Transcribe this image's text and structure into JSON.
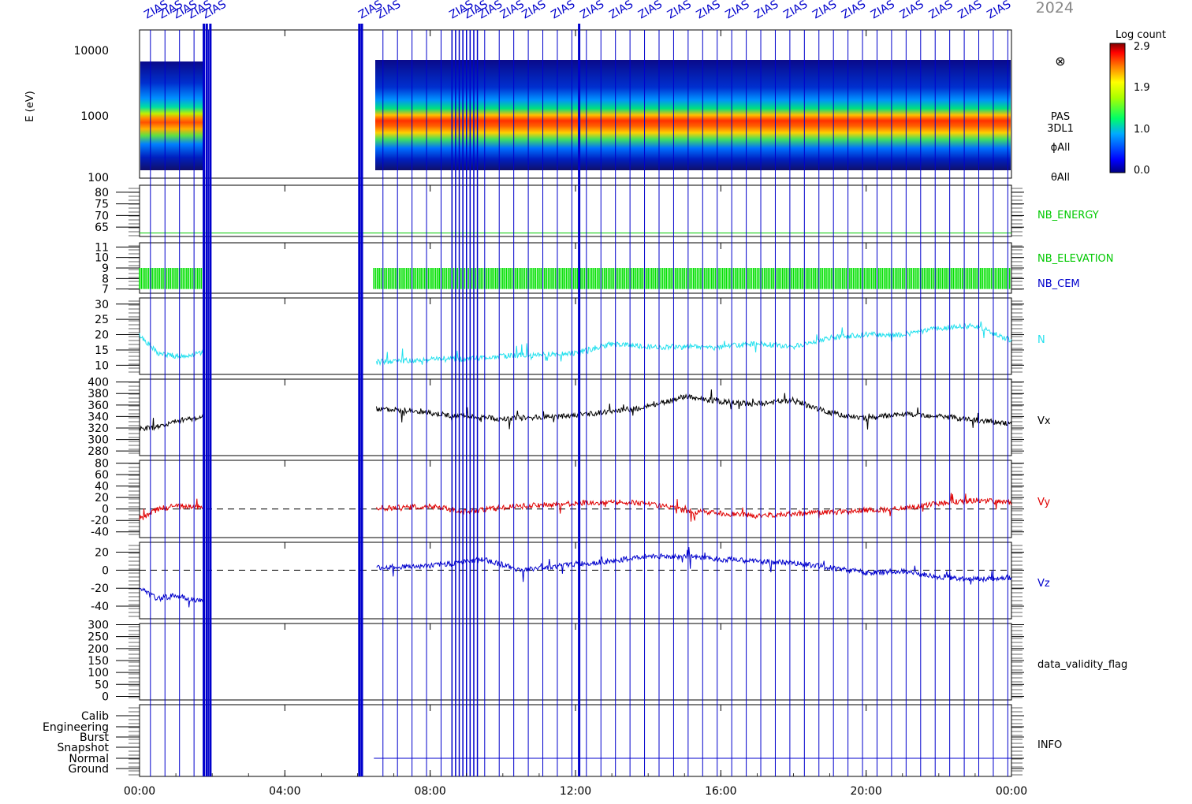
{
  "header": {
    "title_fragment": "2024"
  },
  "colorbar": {
    "label": "Log count",
    "ticks": [
      "2.9",
      "1.9",
      "1.0",
      "0.0"
    ],
    "range": [
      0.0,
      2.9
    ]
  },
  "spectrogram": {
    "ylabel": "E (eV)",
    "ticks": [
      "10000",
      "1000",
      "100"
    ],
    "side_labels": [
      "PAS",
      "3DL1",
      "ϕAll",
      "θAll"
    ],
    "symbol": "⊗",
    "symbol_icon": "circle-cross-icon"
  },
  "chart_data": [
    {
      "type": "heatmap",
      "name": "PAS 3DL1 energy spectrogram",
      "ylabel": "E (eV)",
      "yscale": "log",
      "ylim": [
        100,
        14000
      ],
      "xlim_hours": [
        0,
        24
      ],
      "data_intervals_hours": [
        [
          0.0,
          1.75
        ],
        [
          6.45,
          24.0
        ]
      ],
      "peak_energy_ev": 700,
      "energy_band_ev": [
        120,
        6000
      ],
      "colorbar_range": [
        0.0,
        2.9
      ]
    },
    {
      "type": "line",
      "label": "NB_ENERGY",
      "ticks": [
        "80",
        "75",
        "70",
        "65"
      ],
      "ylim": [
        61,
        83
      ],
      "color": "#00c800",
      "value": 62.5
    },
    {
      "type": "bar",
      "labels": [
        "NB_ELEVATION",
        "NB_CEM"
      ],
      "label_colors": [
        "#00c800",
        "#0000cc"
      ],
      "ticks": [
        "11",
        "10",
        "9",
        "8",
        "7"
      ],
      "ylim": [
        6.6,
        11.4
      ],
      "color": "#00e000",
      "band": [
        7,
        9
      ]
    },
    {
      "type": "line",
      "label": "N",
      "ticks": [
        "30",
        "25",
        "20",
        "15",
        "10"
      ],
      "ylim": [
        7,
        32
      ],
      "color": "#22e0ee",
      "x_hours": [
        0,
        0.5,
        1.0,
        1.75,
        6.5,
        8.0,
        9.0,
        10.0,
        12.0,
        13.0,
        14.0,
        16.0,
        17.0,
        18.0,
        19.0,
        20.0,
        21.0,
        22.0,
        23.0,
        24.0
      ],
      "values": [
        20,
        14,
        13,
        14,
        11,
        12,
        12,
        13,
        14,
        17,
        16,
        16,
        17,
        16,
        19,
        20,
        20,
        22,
        23,
        18
      ]
    },
    {
      "type": "line",
      "label": "Vx",
      "ticks": [
        "400",
        "380",
        "360",
        "340",
        "320",
        "300",
        "280"
      ],
      "ylim": [
        272,
        405
      ],
      "color": "#000000",
      "x_hours": [
        0,
        0.5,
        1.0,
        1.75,
        6.5,
        7.5,
        8.5,
        10.0,
        12.0,
        13.0,
        14.0,
        15.0,
        16.0,
        17.0,
        18.0,
        19.0,
        20.0,
        21.0,
        22.0,
        23.0,
        24.0
      ],
      "values": [
        318,
        322,
        332,
        340,
        354,
        350,
        342,
        336,
        342,
        349,
        357,
        375,
        366,
        362,
        368,
        346,
        337,
        344,
        341,
        334,
        328
      ]
    },
    {
      "type": "line",
      "label": "Vy",
      "ticks": [
        "80",
        "60",
        "40",
        "20",
        "0",
        "-20",
        "-40"
      ],
      "ylim": [
        -50,
        85
      ],
      "color": "#e00000",
      "dashed_zero": true,
      "x_hours": [
        0,
        0.5,
        1.0,
        1.75,
        6.5,
        8.0,
        9.0,
        10.0,
        12.0,
        13.0,
        14.0,
        15.0,
        16.0,
        17.0,
        18.0,
        19.0,
        20.0,
        21.0,
        22.0,
        23.0,
        24.0
      ],
      "values": [
        -20,
        0,
        5,
        3,
        0,
        5,
        -5,
        3,
        10,
        12,
        10,
        -3,
        -8,
        -12,
        -8,
        -6,
        -2,
        0,
        10,
        15,
        12
      ]
    },
    {
      "type": "line",
      "label": "Vz",
      "ticks": [
        "20",
        "0",
        "-20",
        "-40"
      ],
      "ylim": [
        -54,
        31
      ],
      "color": "#0000cc",
      "dashed_zero": true,
      "x_hours": [
        0,
        0.5,
        1.0,
        1.75,
        6.5,
        8.0,
        9.5,
        10.5,
        12.0,
        13.0,
        14.0,
        15.0,
        16.0,
        17.0,
        18.0,
        19.0,
        20.0,
        21.0,
        22.0,
        23.0,
        24.0
      ],
      "values": [
        -20,
        -32,
        -28,
        -35,
        3,
        5,
        12,
        0,
        7,
        10,
        16,
        15,
        12,
        10,
        8,
        3,
        -3,
        -1,
        -8,
        -10,
        -8
      ]
    },
    {
      "type": "line",
      "label": "data_validity_flag",
      "ticks": [
        "300",
        "250",
        "200",
        "150",
        "100",
        "50",
        "0"
      ],
      "ylim": [
        -15,
        305
      ],
      "color": "#000000",
      "values": []
    },
    {
      "type": "table",
      "label": "INFO",
      "ticks": [
        "Calib",
        "Engineering",
        "Burst",
        "Snapshot",
        "Normal",
        "Ground"
      ],
      "normal_mode_hours": [
        6.45,
        24.0
      ]
    }
  ],
  "x_axis": {
    "ticks": [
      "00:00",
      "04:00",
      "08:00",
      "12:00",
      "16:00",
      "20:00",
      "00:00"
    ],
    "xlim_hours": [
      0,
      24
    ]
  },
  "markers": {
    "color": "#0000cc",
    "label_text": "ZIAS",
    "thick_hours": [
      1.77,
      1.85,
      1.95,
      6.05,
      6.12,
      12.1
    ],
    "dense_hours": [
      8.6,
      8.7,
      8.8,
      8.9,
      9.0,
      9.1,
      9.2,
      9.3
    ]
  }
}
